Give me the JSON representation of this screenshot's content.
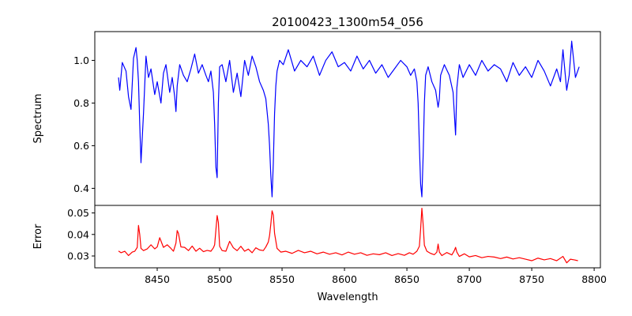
{
  "chart_data": {
    "type": "line",
    "title": "20100423_1300m54_056",
    "xlabel": "Wavelength",
    "xlim": [
      8400,
      8805
    ],
    "xticks": [
      8450,
      8500,
      8550,
      8600,
      8650,
      8700,
      8750,
      8800
    ],
    "xticklabels": [
      "8450",
      "8500",
      "8550",
      "8600",
      "8650",
      "8700",
      "8750",
      "8800"
    ],
    "grid": false,
    "panels": [
      {
        "ylabel": "Spectrum",
        "ylim": [
          0.32,
          1.135
        ],
        "yticks": [
          0.4,
          0.6,
          0.8,
          1.0
        ],
        "yticklabels": [
          "0.4",
          "0.6",
          "0.8",
          "1.0"
        ],
        "series": [
          {
            "color": "#0000ff",
            "x": [
              8419,
              8420,
              8422,
              8425,
              8427,
              8429,
              8431,
              8433,
              8434,
              8435,
              8436,
              8437,
              8439,
              8441,
              8443,
              8445,
              8448,
              8450,
              8453,
              8455,
              8457,
              8460,
              8462,
              8464,
              8465,
              8466,
              8468,
              8471,
              8474,
              8477,
              8480,
              8483,
              8486,
              8489,
              8491,
              8493,
              8495,
              8496,
              8497,
              8498,
              8499,
              8500,
              8502,
              8505,
              8508,
              8511,
              8514,
              8517,
              8520,
              8523,
              8526,
              8529,
              8532,
              8535,
              8537,
              8538,
              8539,
              8540,
              8541,
              8542,
              8543,
              8544,
              8545,
              8546,
              8548,
              8551,
              8555,
              8560,
              8565,
              8570,
              8575,
              8580,
              8585,
              8590,
              8595,
              8600,
              8605,
              8610,
              8615,
              8620,
              8625,
              8630,
              8635,
              8640,
              8645,
              8650,
              8653,
              8656,
              8658,
              8659,
              8660,
              8661,
              8662,
              8663,
              8664,
              8665,
              8667,
              8670,
              8673,
              8675,
              8676,
              8677,
              8680,
              8684,
              8687,
              8688,
              8689,
              8690,
              8692,
              8695,
              8700,
              8705,
              8710,
              8715,
              8720,
              8725,
              8730,
              8735,
              8740,
              8745,
              8750,
              8755,
              8760,
              8765,
              8770,
              8773,
              8775,
              8778,
              8780,
              8782,
              8785,
              8788
            ],
            "y": [
              0.92,
              0.86,
              0.99,
              0.95,
              0.83,
              0.77,
              1.01,
              1.06,
              1.0,
              0.9,
              0.7,
              0.52,
              0.75,
              1.02,
              0.92,
              0.96,
              0.84,
              0.9,
              0.8,
              0.94,
              0.98,
              0.85,
              0.92,
              0.83,
              0.76,
              0.88,
              0.98,
              0.93,
              0.9,
              0.96,
              1.03,
              0.94,
              0.98,
              0.93,
              0.9,
              0.95,
              0.85,
              0.7,
              0.5,
              0.45,
              0.8,
              0.97,
              0.98,
              0.9,
              1.0,
              0.85,
              0.94,
              0.83,
              1.0,
              0.93,
              1.02,
              0.97,
              0.9,
              0.86,
              0.82,
              0.76,
              0.7,
              0.6,
              0.46,
              0.36,
              0.52,
              0.75,
              0.88,
              0.95,
              1.0,
              0.98,
              1.05,
              0.95,
              1.0,
              0.97,
              1.02,
              0.93,
              1.0,
              1.04,
              0.97,
              0.99,
              0.95,
              1.02,
              0.96,
              1.0,
              0.94,
              0.98,
              0.92,
              0.96,
              1.0,
              0.97,
              0.93,
              0.96,
              0.9,
              0.8,
              0.6,
              0.42,
              0.36,
              0.55,
              0.8,
              0.93,
              0.97,
              0.9,
              0.86,
              0.78,
              0.82,
              0.93,
              0.98,
              0.93,
              0.85,
              0.75,
              0.65,
              0.87,
              0.98,
              0.92,
              0.98,
              0.93,
              1.0,
              0.95,
              0.98,
              0.96,
              0.9,
              0.99,
              0.93,
              0.97,
              0.92,
              1.0,
              0.95,
              0.88,
              0.96,
              0.9,
              1.05,
              0.86,
              0.93,
              1.09,
              0.92,
              0.97
            ]
          }
        ]
      },
      {
        "ylabel": "Error",
        "ylim": [
          0.0245,
          0.0535
        ],
        "yticks": [
          0.03,
          0.04,
          0.05
        ],
        "yticklabels": [
          "0.03",
          "0.04",
          "0.05"
        ],
        "series": [
          {
            "color": "#ff0000",
            "x": [
              8419,
              8421,
              8424,
              8427,
              8430,
              8432,
              8434,
              8435,
              8436,
              8437,
              8439,
              8442,
              8445,
              8448,
              8450,
              8452,
              8455,
              8458,
              8461,
              8463,
              8465,
              8466,
              8467,
              8469,
              8472,
              8475,
              8478,
              8481,
              8484,
              8487,
              8490,
              8493,
              8495,
              8496,
              8497,
              8498,
              8499,
              8500,
              8502,
              8505,
              8508,
              8511,
              8514,
              8517,
              8520,
              8523,
              8526,
              8529,
              8532,
              8535,
              8537,
              8539,
              8540,
              8541,
              8542,
              8543,
              8544,
              8546,
              8549,
              8553,
              8558,
              8563,
              8568,
              8573,
              8578,
              8583,
              8588,
              8593,
              8598,
              8603,
              8608,
              8613,
              8618,
              8623,
              8628,
              8633,
              8638,
              8643,
              8648,
              8652,
              8655,
              8658,
              8660,
              8661,
              8662,
              8663,
              8664,
              8666,
              8669,
              8672,
              8674,
              8675,
              8676,
              8678,
              8682,
              8686,
              8688,
              8689,
              8690,
              8692,
              8696,
              8700,
              8705,
              8710,
              8715,
              8720,
              8725,
              8730,
              8735,
              8740,
              8745,
              8750,
              8755,
              8760,
              8765,
              8770,
              8775,
              8778,
              8781,
              8784,
              8787
            ],
            "y": [
              0.0323,
              0.0315,
              0.0322,
              0.0302,
              0.0318,
              0.0322,
              0.034,
              0.0442,
              0.04,
              0.0335,
              0.0325,
              0.0333,
              0.0352,
              0.0333,
              0.0342,
              0.0385,
              0.034,
              0.0352,
              0.0335,
              0.0322,
              0.036,
              0.0418,
              0.0405,
              0.0342,
              0.034,
              0.0325,
              0.0346,
              0.0322,
              0.0336,
              0.032,
              0.0326,
              0.0322,
              0.0338,
              0.0352,
              0.042,
              0.0488,
              0.0455,
              0.0345,
              0.0325,
              0.0322,
              0.0368,
              0.0338,
              0.0325,
              0.0345,
              0.0322,
              0.0332,
              0.0315,
              0.0338,
              0.0328,
              0.0325,
              0.0342,
              0.0365,
              0.0395,
              0.0448,
              0.051,
              0.049,
              0.0405,
              0.0335,
              0.0318,
              0.0322,
              0.0312,
              0.0326,
              0.0315,
              0.0322,
              0.031,
              0.0318,
              0.0308,
              0.0315,
              0.0305,
              0.0318,
              0.0308,
              0.0315,
              0.0303,
              0.031,
              0.0306,
              0.0315,
              0.0302,
              0.0311,
              0.0303,
              0.0315,
              0.0308,
              0.0322,
              0.0345,
              0.0425,
              0.0522,
              0.0448,
              0.035,
              0.0322,
              0.0312,
              0.0306,
              0.0318,
              0.0355,
              0.0318,
              0.0302,
              0.0316,
              0.0305,
              0.0325,
              0.034,
              0.0318,
              0.0298,
              0.031,
              0.0296,
              0.0302,
              0.0292,
              0.0298,
              0.0295,
              0.0288,
              0.0295,
              0.0286,
              0.0292,
              0.0285,
              0.0278,
              0.029,
              0.0282,
              0.0288,
              0.0278,
              0.0298,
              0.0268,
              0.0285,
              0.0282,
              0.0278
            ]
          }
        ]
      }
    ]
  }
}
